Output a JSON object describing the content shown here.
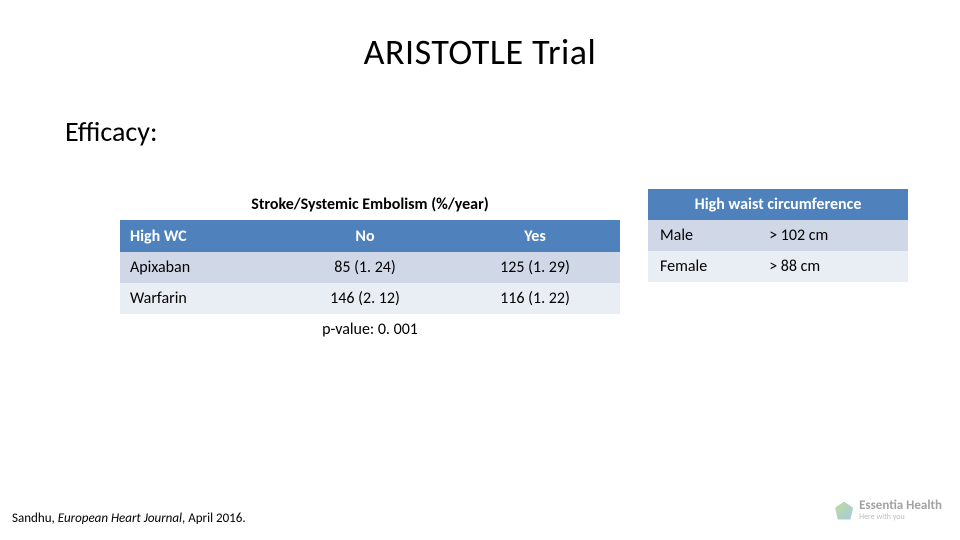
{
  "title": "ARISTOTLE Trial",
  "subtitle": "Efficacy:",
  "left_table": {
    "header_span": "Stroke/Systemic Embolism (%/year)",
    "subhead": [
      "High WC",
      "No",
      "Yes"
    ],
    "rows": [
      {
        "cells": [
          "Apixaban",
          "85 (1. 24)",
          "125 (1. 29)"
        ],
        "alt": true
      },
      {
        "cells": [
          "Warfarin",
          "146 (2. 12)",
          "116 (1. 22)"
        ],
        "alt": false
      }
    ],
    "pvalue": "p-value: 0. 001",
    "col_widths": [
      "32%",
      "34%",
      "34%"
    ]
  },
  "right_table": {
    "header": "High waist circumference",
    "rows": [
      {
        "cells": [
          "Male",
          "> 102 cm"
        ],
        "alt": true
      },
      {
        "cells": [
          "Female",
          "> 88 cm"
        ],
        "alt": false
      }
    ],
    "col_widths": [
      "42%",
      "58%"
    ]
  },
  "citation": {
    "prefix": "Sandhu, ",
    "journal": "European Heart Journal",
    "suffix": ", April 2016."
  },
  "logo": {
    "name": "Essentia Health",
    "tag": "Here with you"
  },
  "colors": {
    "accent": "#4f81bd",
    "row_alt": "#d0d8e8",
    "row_plain": "#e9edf4",
    "bg": "#ffffff"
  },
  "typography": {
    "title_size": 36,
    "subtitle_size": 28,
    "body_size": 16,
    "cite_size": 13
  }
}
